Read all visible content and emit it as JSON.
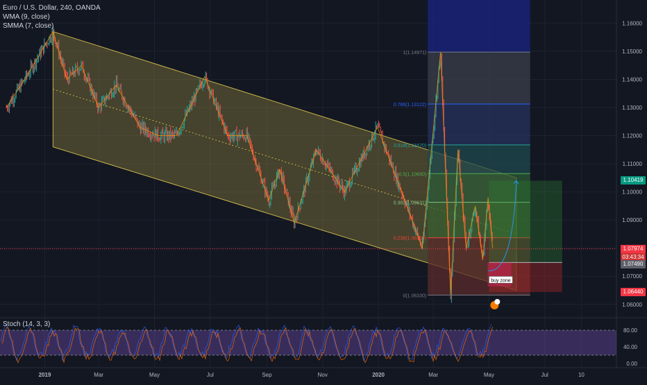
{
  "chart_data": {
    "type": "candlestick",
    "symbol_line": "Euro / U.S. Dollar, 240, OANDA",
    "indicators": [
      "WMA (9, close)",
      "SMMA (7, close)"
    ],
    "price_axis": {
      "ticks": [
        "1.16000",
        "1.15000",
        "1.14000",
        "1.13000",
        "1.12000",
        "1.11000",
        "1.10000",
        "1.09000",
        "1.08000",
        "1.07000",
        "1.06000"
      ],
      "ylim": [
        1.056,
        1.167
      ]
    },
    "time_axis": {
      "ticks": [
        "2019",
        "Mar",
        "May",
        "Jul",
        "Sep",
        "Nov",
        "2020",
        "Mar",
        "May",
        "Jul",
        "10"
      ]
    },
    "price_path": [
      [
        "2018-11-20",
        1.13
      ],
      [
        "2018-12-10",
        1.14
      ],
      [
        "2019-01-10",
        1.157
      ],
      [
        "2019-01-25",
        1.14
      ],
      [
        "2019-02-10",
        1.145
      ],
      [
        "2019-03-01",
        1.13
      ],
      [
        "2019-03-20",
        1.138
      ],
      [
        "2019-04-15",
        1.123
      ],
      [
        "2019-05-05",
        1.12
      ],
      [
        "2019-05-25",
        1.12
      ],
      [
        "2019-06-25",
        1.141
      ],
      [
        "2019-07-20",
        1.12
      ],
      [
        "2019-08-10",
        1.12
      ],
      [
        "2019-09-03",
        1.097
      ],
      [
        "2019-09-15",
        1.108
      ],
      [
        "2019-10-01",
        1.089
      ],
      [
        "2019-10-25",
        1.115
      ],
      [
        "2019-11-25",
        1.1
      ],
      [
        "2019-12-31",
        1.123
      ],
      [
        "2020-01-15",
        1.11
      ],
      [
        "2020-02-18",
        1.08
      ],
      [
        "2020-03-09",
        1.1497
      ],
      [
        "2020-03-20",
        1.0636
      ],
      [
        "2020-03-28",
        1.115
      ],
      [
        "2020-04-06",
        1.08
      ],
      [
        "2020-04-16",
        1.095
      ],
      [
        "2020-04-24",
        1.076
      ],
      [
        "2020-04-30",
        1.098
      ],
      [
        "2020-05-05",
        1.08
      ]
    ],
    "channel": {
      "upper": [
        [
          "2019-01-10",
          1.157
        ],
        [
          "2020-05-31",
          1.105
        ]
      ],
      "lower": [
        [
          "2019-01-10",
          1.116
        ],
        [
          "2020-05-31",
          1.065
        ]
      ],
      "fill": "#c8b44a"
    },
    "fibonacci": {
      "levels": [
        {
          "label": "1(1.14971)",
          "price": 1.14971,
          "color": "#787b86"
        },
        {
          "label": "0.786(1.13122)",
          "price": 1.13122,
          "color": "#2962ff"
        },
        {
          "label": "0.618(1.11670)",
          "price": 1.1167,
          "color": "#26a69a"
        },
        {
          "label": "0.5(1.10650)",
          "price": 1.1065,
          "color": "#4caf50"
        },
        {
          "label": "0.382(1.09631)",
          "price": 1.09631,
          "color": "#81c784"
        },
        {
          "label": "0.236(1.08369)",
          "price": 1.08369,
          "color": "#f44336"
        },
        {
          "label": "0(1.06330)",
          "price": 1.0633,
          "color": "#787b86"
        }
      ]
    },
    "long_position": {
      "zone_label": "buy zone",
      "entry": 1.0749,
      "target": 1.104,
      "stop": 1.0644
    },
    "projection": [
      [
        "2020-04-30",
        1.072
      ],
      [
        "2020-05-31",
        1.104
      ]
    ],
    "price_labels": [
      {
        "text": "1.10419",
        "price": 1.10419,
        "color": "#089981"
      },
      {
        "text": "1.07974",
        "price": 1.07974,
        "color": "#f23645"
      },
      {
        "text": "1.07490",
        "price": 1.0749,
        "color": "#b2b5be"
      },
      {
        "text": "1.06440",
        "price": 1.0644,
        "color": "#f23645"
      }
    ],
    "countdown": "03:43:34",
    "stochastic": {
      "label": "Stoch (14, 3, 3)",
      "ticks": [
        "80.00",
        "40.00",
        "0.00"
      ],
      "band": [
        20,
        80
      ]
    }
  },
  "colors": {
    "background": "#131722",
    "grid": "#1e2230",
    "up": "#26a69a",
    "down": "#ef5350",
    "band": "#7e57c2"
  }
}
